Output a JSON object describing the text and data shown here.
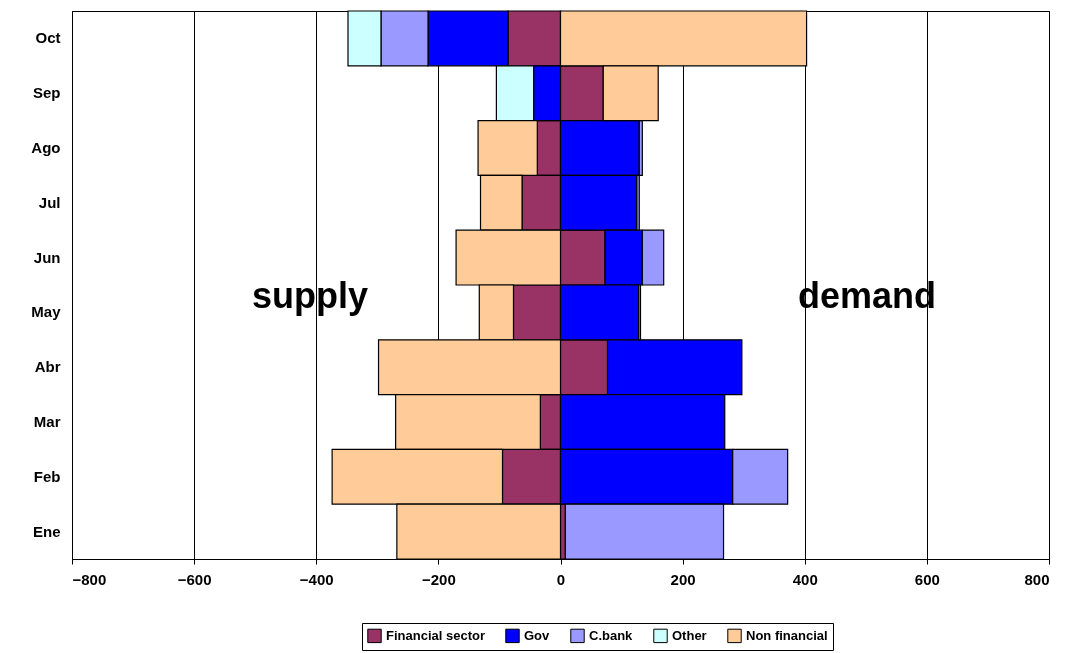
{
  "chart_data": {
    "type": "bar",
    "orientation": "horizontal",
    "stacked": true,
    "categories": [
      "Oct",
      "Sep",
      "Ago",
      "Jul",
      "Jun",
      "May",
      "Abr",
      "Mar",
      "Feb",
      "Ene"
    ],
    "series": [
      {
        "name": "Financial sector",
        "color": "#993366",
        "values": [
          -86,
          70,
          -38,
          -63,
          73,
          -77,
          77,
          -33,
          -95,
          8
        ]
      },
      {
        "name": "Gov",
        "color": "#0000ff",
        "values": [
          -131,
          -44,
          129,
          125,
          61,
          128,
          220,
          269,
          282,
          null
        ]
      },
      {
        "name": "C.bank",
        "color": "#9999ff",
        "values": [
          -77,
          null,
          5,
          4,
          35,
          3,
          null,
          null,
          90,
          259
        ]
      },
      {
        "name": "Other",
        "color": "#ccffff",
        "values": [
          -54,
          -61,
          null,
          null,
          null,
          null,
          null,
          null,
          null,
          null
        ]
      },
      {
        "name": "Non financial",
        "color": "#ffcc99",
        "values": [
          403,
          90,
          -97,
          -68,
          -171,
          -56,
          -298,
          -237,
          -279,
          -268
        ]
      }
    ],
    "xlim": [
      -800,
      800
    ],
    "xticks": [
      -800,
      -600,
      -400,
      -200,
      0,
      200,
      400,
      600,
      800
    ],
    "grid": "x",
    "legend": "bottom",
    "annotations": [
      "supply",
      "demand"
    ]
  }
}
